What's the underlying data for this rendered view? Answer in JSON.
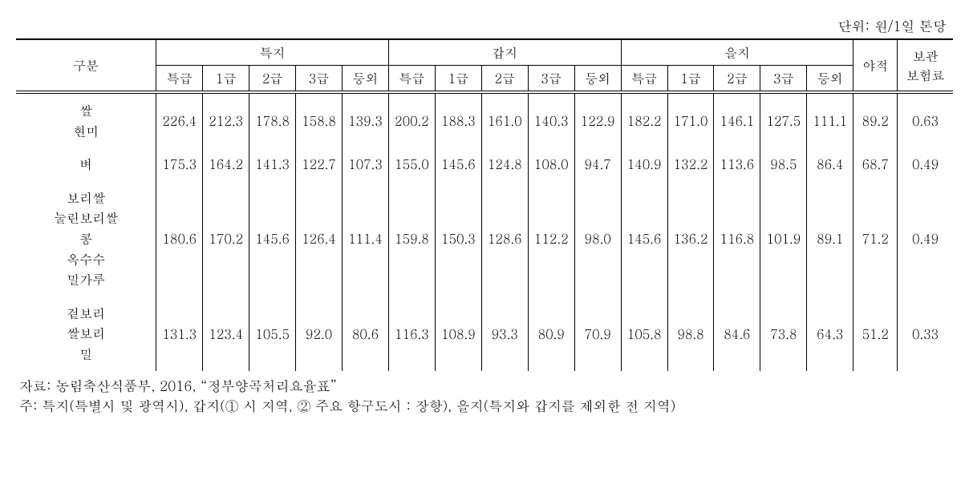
{
  "unit_label": "단위: 원/1일 톤당",
  "header": {
    "category": "구분",
    "group1": "특지",
    "group2": "갑지",
    "group3": "을지",
    "yajeok": "야적",
    "bogwan_line1": "보관",
    "bogwan_line2": "보험료",
    "sub": {
      "g1": "특급",
      "g2": "1급",
      "g3": "2급",
      "g4": "3급",
      "g5": "등외"
    }
  },
  "rows": [
    {
      "name_lines": [
        "쌀",
        "현미"
      ],
      "vals": [
        "226.4",
        "212.3",
        "178.8",
        "158.8",
        "139.3",
        "200.2",
        "188.3",
        "161.0",
        "140.3",
        "122.9",
        "182.2",
        "171.0",
        "146.1",
        "127.5",
        "111.1"
      ],
      "yajeok": "89.2",
      "bogwan": "0.63"
    },
    {
      "name_lines": [
        "벼"
      ],
      "vals": [
        "175.3",
        "164.2",
        "141.3",
        "122.7",
        "107.3",
        "155.0",
        "145.6",
        "124.8",
        "108.0",
        "94.7",
        "140.9",
        "132.2",
        "113.6",
        "98.5",
        "86.4"
      ],
      "yajeok": "68.7",
      "bogwan": "0.49"
    },
    {
      "name_lines": [
        "보리쌀",
        "눌린보리쌀",
        "콩",
        "옥수수",
        "밀가루"
      ],
      "vals": [
        "180.6",
        "170.2",
        "145.6",
        "126.4",
        "111.4",
        "159.8",
        "150.3",
        "128.6",
        "112.2",
        "98.0",
        "145.6",
        "136.2",
        "116.8",
        "101.9",
        "89.1"
      ],
      "yajeok": "71.2",
      "bogwan": "0.49"
    },
    {
      "name_lines": [
        "겉보리",
        "쌀보리",
        "밀"
      ],
      "vals": [
        "131.3",
        "123.4",
        "105.5",
        "92.0",
        "80.6",
        "116.3",
        "108.9",
        "93.3",
        "80.9",
        "70.9",
        "105.8",
        "98.8",
        "84.6",
        "73.8",
        "64.3"
      ],
      "yajeok": "51.2",
      "bogwan": "0.33"
    }
  ],
  "footnotes": {
    "line1": "자료: 농림축산식품부, 2016, “정부양곡처리요율표”",
    "line2": "주: 특지(특별시 및 광역시), 갑지(① 시 지역, ② 주요 항구도시 : 장항), 을지(특지와 갑지를 제외한 전 지역)"
  },
  "style": {
    "font_family": "Batang, 바탕, serif",
    "font_size_body": 16,
    "font_size_footnote": 17,
    "border_color": "#000000",
    "border_thick": 2,
    "border_thin": 1,
    "background_color": "#ffffff",
    "text_color": "#000000"
  }
}
